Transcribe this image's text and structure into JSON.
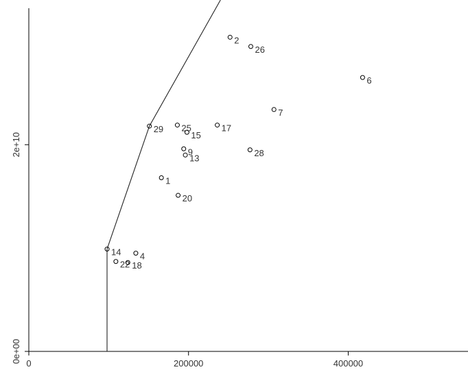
{
  "chart_data": {
    "type": "scatter",
    "title": "",
    "xlabel": "",
    "ylabel": "",
    "xlim": [
      0,
      550000
    ],
    "ylim": [
      0,
      34000000000
    ],
    "x_ticks": [
      0,
      200000,
      400000
    ],
    "x_tick_labels": [
      "0",
      "200000",
      "400000"
    ],
    "y_ticks": [
      0,
      20000000000
    ],
    "y_tick_labels": [
      "0e+00",
      "2e+10"
    ],
    "grid": false,
    "points": [
      {
        "label": "2",
        "x": 252000,
        "y": 30400000000
      },
      {
        "label": "26",
        "x": 278000,
        "y": 29500000000
      },
      {
        "label": "6",
        "x": 418000,
        "y": 26500000000
      },
      {
        "label": "7",
        "x": 307000,
        "y": 23400000000
      },
      {
        "label": "29",
        "x": 151000,
        "y": 21800000000
      },
      {
        "label": "25",
        "x": 186000,
        "y": 21900000000
      },
      {
        "label": "15",
        "x": 198000,
        "y": 21200000000
      },
      {
        "label": "17",
        "x": 236000,
        "y": 21900000000
      },
      {
        "label": "9",
        "x": 194000,
        "y": 19600000000
      },
      {
        "label": "13",
        "x": 196000,
        "y": 19000000000
      },
      {
        "label": "28",
        "x": 277000,
        "y": 19500000000
      },
      {
        "label": "1",
        "x": 166000,
        "y": 16800000000
      },
      {
        "label": "20",
        "x": 187000,
        "y": 15100000000
      },
      {
        "label": "14",
        "x": 98000,
        "y": 9900000000
      },
      {
        "label": "4",
        "x": 134000,
        "y": 9500000000
      },
      {
        "label": "22",
        "x": 109000,
        "y": 8700000000
      },
      {
        "label": "18",
        "x": 124000,
        "y": 8600000000
      }
    ],
    "frontier": [
      {
        "x": 98000,
        "y": 0
      },
      {
        "x": 98000,
        "y": 9900000000
      },
      {
        "x": 151000,
        "y": 21800000000
      },
      {
        "x": 240000,
        "y": 34000000000
      }
    ]
  }
}
